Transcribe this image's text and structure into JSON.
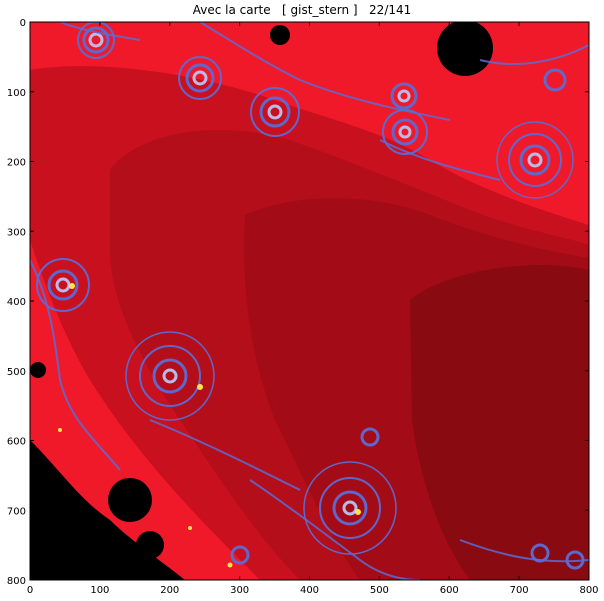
{
  "figure": {
    "title": "Avec la carte   [ gist_stern ]   22/141"
  },
  "axes": {
    "x_ticks": [
      0,
      100,
      200,
      300,
      400,
      500,
      600,
      700,
      800
    ],
    "y_ticks": [
      0,
      100,
      200,
      300,
      400,
      500,
      600,
      700,
      800
    ],
    "x_range": [
      0,
      800
    ],
    "y_range": [
      0,
      800
    ],
    "y_inverted": true
  },
  "image": {
    "subject": "Mandelbrot-set fractal detail",
    "colormap": "gist_stern",
    "colors": {
      "outer_red": "#f0192a",
      "mid_red": "#c8101e",
      "deep_red": "#a80c16",
      "darkest_red": "#8a0a12",
      "set_black": "#000000",
      "filament_blue": "#5b6cd6",
      "filament_light": "#b9c4f2",
      "highlight_yellow": "#ffe34a"
    }
  }
}
